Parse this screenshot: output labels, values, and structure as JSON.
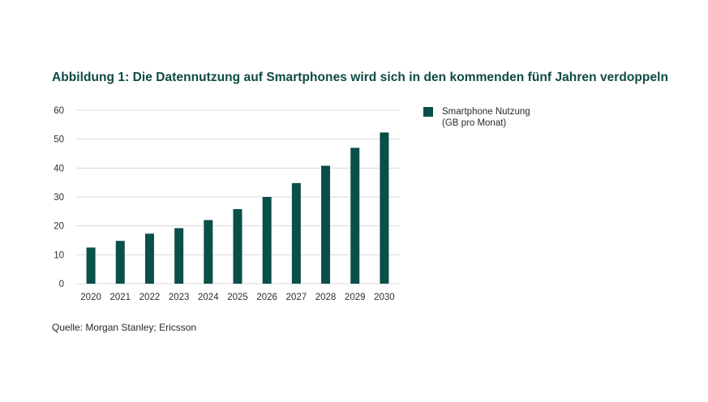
{
  "chart_data": {
    "type": "bar",
    "title": "Abbildung 1: Die Datennutzung auf Smartphones wird sich in den kommenden fünf Jahren verdoppeln",
    "categories": [
      "2020",
      "2021",
      "2022",
      "2023",
      "2024",
      "2025",
      "2026",
      "2027",
      "2028",
      "2029",
      "2030"
    ],
    "series": [
      {
        "name": "Smartphone Nutzung (GB pro Monat)",
        "values": [
          12.5,
          14.8,
          17.3,
          19.2,
          22.0,
          25.8,
          30.0,
          34.8,
          40.8,
          47.0,
          52.3
        ]
      }
    ],
    "legend_lines": [
      "Smartphone Nutzung",
      "(GB pro Monat)"
    ],
    "ylim": [
      0,
      60
    ],
    "yticks": [
      0,
      10,
      20,
      30,
      40,
      50,
      60
    ],
    "grid": true,
    "legend_position": "right",
    "source": "Quelle: Morgan Stanley; Ericsson",
    "bar_color": "#0b4f49",
    "grid_color": "#d9d9d9",
    "tick_color": "#2f2f2f"
  }
}
